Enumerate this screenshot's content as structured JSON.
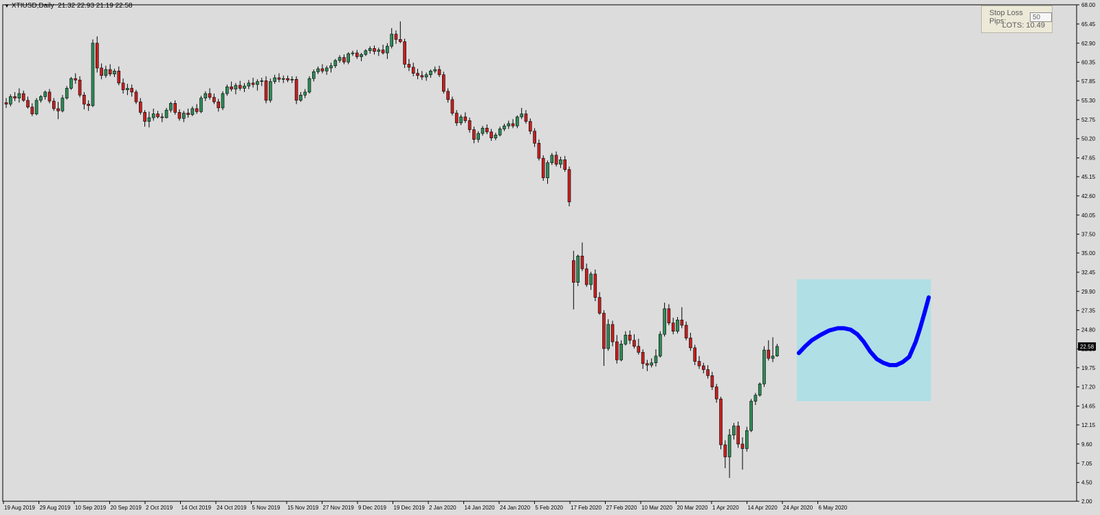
{
  "header": {
    "symbol": "XTIUSD,Daily",
    "ohlc": "21.32 22.93 21.19 22.58"
  },
  "stop_loss_panel": {
    "label": "Stop Loss Pips:",
    "value": "50",
    "lots_label": "LOTS:",
    "lots_value": "10.49"
  },
  "colors": {
    "background": "#dcdcdc",
    "bull": "#2e8b57",
    "bear": "#c62020",
    "wick": "#000000",
    "forecast_box": "#b0dfe6",
    "forecast_line": "#0000ff",
    "price_tag_bg": "#000000",
    "price_tag_fg": "#ffffff"
  },
  "chart_data": {
    "type": "candlestick",
    "title": "XTIUSD,Daily",
    "ylim": [
      2.0,
      68.0
    ],
    "y_ticks": [
      "68.00",
      "65.45",
      "62.90",
      "60.35",
      "57.85",
      "55.30",
      "52.75",
      "50.20",
      "47.65",
      "45.15",
      "42.60",
      "40.05",
      "37.50",
      "35.00",
      "32.45",
      "29.90",
      "27.35",
      "24.80",
      "22.25",
      "19.75",
      "17.20",
      "14.65",
      "12.15",
      "9.60",
      "7.05",
      "4.50",
      "2.00"
    ],
    "x_ticks": [
      "19 Aug 2019",
      "29 Aug 2019",
      "10 Sep 2019",
      "20 Sep 2019",
      "2 Oct 2019",
      "14 Oct 2019",
      "24 Oct 2019",
      "5 Nov 2019",
      "15 Nov 2019",
      "27 Nov 2019",
      "9 Dec 2019",
      "19 Dec 2019",
      "2 Jan 2020",
      "14 Jan 2020",
      "24 Jan 2020",
      "5 Feb 2020",
      "17 Feb 2020",
      "27 Feb 2020",
      "10 Mar 2020",
      "20 Mar 2020",
      "1 Apr 2020",
      "14 Apr 2020",
      "24 Apr 2020",
      "6 May 2020"
    ],
    "last_price": "22.58",
    "candles": [
      [
        55.0,
        55.6,
        54.3,
        54.8
      ],
      [
        54.8,
        56.1,
        54.5,
        55.8
      ],
      [
        55.8,
        56.4,
        55.2,
        55.6
      ],
      [
        55.6,
        56.9,
        55.0,
        56.2
      ],
      [
        56.2,
        56.6,
        55.1,
        55.3
      ],
      [
        55.3,
        55.8,
        54.2,
        54.4
      ],
      [
        54.4,
        54.9,
        53.2,
        53.5
      ],
      [
        53.5,
        55.6,
        53.3,
        55.3
      ],
      [
        55.3,
        56.0,
        55.0,
        55.8
      ],
      [
        55.8,
        56.6,
        55.4,
        56.4
      ],
      [
        56.4,
        56.8,
        54.9,
        55.2
      ],
      [
        55.2,
        55.6,
        53.9,
        54.2
      ],
      [
        54.2,
        55.1,
        52.8,
        53.9
      ],
      [
        53.9,
        56.0,
        53.7,
        55.6
      ],
      [
        55.6,
        57.2,
        55.4,
        56.9
      ],
      [
        56.9,
        58.4,
        56.7,
        58.2
      ],
      [
        58.2,
        58.9,
        57.5,
        58.0
      ],
      [
        58.0,
        58.5,
        55.7,
        56.0
      ],
      [
        56.0,
        56.4,
        54.1,
        54.8
      ],
      [
        54.8,
        55.3,
        53.9,
        54.6
      ],
      [
        54.6,
        63.4,
        54.4,
        62.9
      ],
      [
        62.9,
        63.8,
        59.0,
        59.6
      ],
      [
        59.6,
        60.2,
        58.1,
        58.6
      ],
      [
        58.6,
        59.9,
        58.3,
        59.4
      ],
      [
        59.4,
        60.1,
        58.5,
        58.8
      ],
      [
        58.8,
        59.5,
        58.4,
        59.2
      ],
      [
        59.2,
        59.8,
        57.3,
        57.6
      ],
      [
        57.6,
        58.2,
        56.2,
        56.7
      ],
      [
        56.7,
        57.5,
        56.0,
        56.9
      ],
      [
        56.9,
        57.4,
        55.8,
        56.4
      ],
      [
        56.4,
        56.7,
        54.8,
        55.1
      ],
      [
        55.1,
        55.6,
        53.4,
        53.7
      ],
      [
        53.7,
        54.0,
        51.8,
        52.5
      ],
      [
        52.5,
        53.8,
        51.7,
        53.0
      ],
      [
        53.0,
        54.2,
        52.6,
        53.5
      ],
      [
        53.5,
        53.9,
        52.9,
        53.1
      ],
      [
        53.1,
        53.6,
        52.4,
        53.0
      ],
      [
        53.0,
        54.3,
        52.9,
        54.0
      ],
      [
        54.0,
        55.1,
        53.7,
        54.9
      ],
      [
        54.9,
        55.3,
        53.4,
        53.7
      ],
      [
        53.7,
        54.1,
        52.6,
        52.9
      ],
      [
        52.9,
        53.9,
        52.4,
        53.6
      ],
      [
        53.6,
        54.2,
        53.0,
        53.4
      ],
      [
        53.4,
        54.5,
        53.2,
        54.2
      ],
      [
        54.2,
        54.8,
        53.5,
        53.8
      ],
      [
        53.8,
        55.9,
        53.6,
        55.6
      ],
      [
        55.6,
        56.5,
        55.2,
        56.2
      ],
      [
        56.2,
        56.9,
        55.4,
        55.7
      ],
      [
        55.7,
        56.2,
        54.8,
        55.1
      ],
      [
        55.1,
        55.5,
        53.8,
        54.3
      ],
      [
        54.3,
        56.5,
        54.0,
        56.2
      ],
      [
        56.2,
        57.4,
        55.9,
        57.1
      ],
      [
        57.1,
        57.8,
        56.5,
        56.8
      ],
      [
        56.8,
        57.6,
        56.1,
        57.3
      ],
      [
        57.3,
        57.9,
        56.6,
        56.9
      ],
      [
        56.9,
        57.6,
        56.4,
        57.2
      ],
      [
        57.2,
        58.0,
        56.8,
        57.6
      ],
      [
        57.6,
        58.3,
        57.0,
        57.4
      ],
      [
        57.4,
        58.1,
        56.6,
        57.8
      ],
      [
        57.8,
        58.3,
        57.2,
        57.9
      ],
      [
        57.9,
        58.5,
        54.9,
        55.3
      ],
      [
        55.3,
        58.2,
        55.0,
        57.8
      ],
      [
        57.8,
        58.7,
        57.5,
        58.3
      ],
      [
        58.3,
        58.9,
        57.7,
        58.1
      ],
      [
        58.1,
        58.6,
        57.6,
        58.2
      ],
      [
        58.2,
        58.6,
        57.7,
        58.0
      ],
      [
        58.0,
        58.5,
        57.6,
        58.1
      ],
      [
        58.1,
        58.5,
        54.8,
        55.3
      ],
      [
        55.3,
        56.4,
        55.1,
        56.0
      ],
      [
        56.0,
        56.8,
        55.6,
        56.4
      ],
      [
        56.4,
        58.5,
        56.2,
        58.2
      ],
      [
        58.2,
        59.4,
        57.8,
        59.1
      ],
      [
        59.1,
        59.8,
        58.8,
        59.5
      ],
      [
        59.5,
        60.1,
        58.9,
        59.2
      ],
      [
        59.2,
        59.9,
        58.7,
        59.6
      ],
      [
        59.6,
        60.3,
        59.0,
        59.9
      ],
      [
        59.9,
        60.8,
        59.6,
        60.6
      ],
      [
        60.6,
        61.3,
        60.3,
        61.0
      ],
      [
        61.0,
        61.4,
        60.1,
        60.4
      ],
      [
        60.4,
        61.7,
        60.1,
        61.5
      ],
      [
        61.5,
        61.9,
        61.2,
        61.6
      ],
      [
        61.6,
        62.0,
        60.8,
        61.1
      ],
      [
        61.1,
        61.6,
        60.5,
        61.4
      ],
      [
        61.4,
        62.1,
        61.2,
        61.9
      ],
      [
        61.9,
        62.5,
        61.5,
        62.2
      ],
      [
        62.2,
        62.6,
        61.4,
        61.8
      ],
      [
        61.8,
        62.3,
        61.2,
        62.0
      ],
      [
        62.0,
        62.7,
        61.4,
        61.6
      ],
      [
        61.6,
        62.9,
        60.8,
        62.5
      ],
      [
        62.5,
        64.9,
        62.2,
        64.1
      ],
      [
        64.1,
        64.6,
        62.8,
        63.4
      ],
      [
        63.4,
        65.8,
        62.9,
        63.1
      ],
      [
        63.1,
        63.5,
        59.6,
        60.1
      ],
      [
        60.1,
        60.8,
        59.2,
        59.7
      ],
      [
        59.7,
        60.3,
        58.5,
        58.9
      ],
      [
        58.9,
        59.5,
        58.1,
        58.6
      ],
      [
        58.6,
        59.2,
        58.0,
        58.4
      ],
      [
        58.4,
        59.0,
        57.9,
        58.7
      ],
      [
        58.7,
        59.4,
        58.3,
        59.2
      ],
      [
        59.2,
        59.8,
        58.9,
        59.4
      ],
      [
        59.4,
        59.9,
        58.4,
        58.7
      ],
      [
        58.7,
        59.1,
        56.2,
        56.5
      ],
      [
        56.5,
        56.9,
        55.0,
        55.4
      ],
      [
        55.4,
        55.8,
        53.3,
        53.6
      ],
      [
        53.6,
        54.0,
        51.9,
        52.3
      ],
      [
        52.3,
        53.4,
        52.0,
        53.1
      ],
      [
        53.1,
        53.7,
        52.3,
        52.6
      ],
      [
        52.6,
        53.0,
        51.0,
        51.4
      ],
      [
        51.4,
        51.8,
        49.6,
        50.1
      ],
      [
        50.1,
        51.2,
        49.7,
        50.9
      ],
      [
        50.9,
        51.9,
        50.6,
        51.6
      ],
      [
        51.6,
        52.1,
        50.8,
        51.1
      ],
      [
        51.1,
        51.5,
        49.9,
        50.3
      ],
      [
        50.3,
        51.0,
        50.0,
        50.7
      ],
      [
        50.7,
        51.8,
        50.5,
        51.5
      ],
      [
        51.5,
        52.2,
        51.2,
        51.9
      ],
      [
        51.9,
        52.6,
        51.5,
        52.2
      ],
      [
        52.2,
        52.8,
        51.6,
        51.9
      ],
      [
        51.9,
        53.3,
        51.6,
        53.1
      ],
      [
        53.1,
        54.3,
        52.8,
        53.5
      ],
      [
        53.5,
        54.0,
        52.2,
        52.5
      ],
      [
        52.5,
        52.9,
        50.8,
        51.2
      ],
      [
        51.2,
        51.6,
        49.1,
        49.6
      ],
      [
        49.6,
        50.1,
        47.3,
        47.6
      ],
      [
        47.6,
        48.0,
        44.6,
        45.0
      ],
      [
        45.0,
        47.3,
        44.2,
        47.0
      ],
      [
        47.0,
        48.3,
        46.7,
        48.0
      ],
      [
        48.0,
        48.5,
        46.5,
        46.8
      ],
      [
        46.8,
        47.8,
        46.3,
        47.4
      ],
      [
        47.4,
        47.9,
        45.8,
        46.1
      ],
      [
        46.1,
        46.5,
        41.2,
        41.8
      ],
      [
        34.0,
        35.3,
        27.5,
        31.1
      ],
      [
        31.1,
        34.8,
        30.6,
        34.6
      ],
      [
        34.6,
        36.4,
        32.6,
        32.9
      ],
      [
        32.9,
        33.6,
        30.5,
        30.8
      ],
      [
        30.8,
        32.5,
        30.1,
        32.2
      ],
      [
        32.2,
        32.8,
        28.6,
        29.1
      ],
      [
        29.1,
        29.8,
        26.8,
        27.0
      ],
      [
        27.0,
        27.4,
        20.0,
        22.3
      ],
      [
        22.3,
        26.2,
        22.0,
        25.5
      ],
      [
        25.5,
        26.0,
        22.6,
        23.2
      ],
      [
        23.2,
        24.1,
        20.3,
        20.8
      ],
      [
        20.8,
        23.4,
        20.6,
        22.9
      ],
      [
        22.9,
        24.6,
        22.7,
        24.1
      ],
      [
        24.1,
        24.7,
        22.9,
        23.4
      ],
      [
        23.4,
        24.2,
        22.3,
        22.6
      ],
      [
        22.6,
        23.6,
        21.5,
        21.8
      ],
      [
        21.8,
        22.2,
        19.6,
        20.3
      ],
      [
        20.3,
        20.8,
        19.3,
        20.1
      ],
      [
        20.1,
        21.0,
        19.8,
        20.4
      ],
      [
        20.4,
        22.2,
        19.9,
        21.3
      ],
      [
        21.3,
        24.6,
        21.1,
        24.2
      ],
      [
        24.2,
        28.4,
        23.9,
        27.6
      ],
      [
        27.6,
        28.2,
        25.4,
        25.7
      ],
      [
        25.7,
        26.4,
        24.2,
        24.6
      ],
      [
        24.6,
        26.5,
        24.3,
        26.1
      ],
      [
        26.1,
        27.8,
        25.0,
        25.4
      ],
      [
        25.4,
        25.9,
        23.4,
        23.7
      ],
      [
        23.7,
        24.4,
        22.0,
        22.4
      ],
      [
        22.4,
        22.8,
        20.1,
        20.6
      ],
      [
        20.6,
        21.3,
        19.6,
        20.0
      ],
      [
        20.0,
        20.4,
        19.0,
        19.5
      ],
      [
        19.5,
        20.1,
        18.3,
        18.7
      ],
      [
        18.7,
        19.2,
        16.8,
        17.2
      ],
      [
        17.2,
        17.6,
        15.1,
        15.6
      ],
      [
        15.6,
        15.9,
        8.9,
        9.5
      ],
      [
        9.5,
        10.1,
        6.4,
        7.9
      ],
      [
        7.9,
        11.6,
        5.1,
        10.8
      ],
      [
        10.8,
        12.4,
        10.2,
        12.0
      ],
      [
        12.0,
        12.6,
        9.1,
        9.6
      ],
      [
        9.6,
        10.5,
        6.2,
        9.0
      ],
      [
        9.0,
        11.9,
        8.6,
        11.4
      ],
      [
        11.4,
        15.6,
        11.2,
        15.3
      ],
      [
        15.3,
        16.4,
        14.8,
        16.1
      ],
      [
        16.1,
        17.8,
        15.9,
        17.6
      ],
      [
        17.6,
        22.6,
        17.2,
        22.1
      ],
      [
        22.1,
        23.4,
        20.7,
        21.0
      ],
      [
        21.0,
        23.8,
        20.5,
        21.3
      ],
      [
        21.32,
        22.93,
        21.19,
        22.58
      ]
    ],
    "forecast": {
      "box": {
        "x_start_index": 183,
        "x_end_index": 213,
        "y_low": 15.3,
        "y_high": 31.5
      },
      "path": [
        [
          183.0,
          21.7
        ],
        [
          184.5,
          22.6
        ],
        [
          186.0,
          23.4
        ],
        [
          188.0,
          24.1
        ],
        [
          190.0,
          24.7
        ],
        [
          192.0,
          25.0
        ],
        [
          193.5,
          25.0
        ],
        [
          195.0,
          24.8
        ],
        [
          196.5,
          24.2
        ],
        [
          198.0,
          23.2
        ],
        [
          199.5,
          21.9
        ],
        [
          201.0,
          20.9
        ],
        [
          202.5,
          20.4
        ],
        [
          204.0,
          20.1
        ],
        [
          205.5,
          20.1
        ],
        [
          207.0,
          20.5
        ],
        [
          208.5,
          21.2
        ],
        [
          210.0,
          23.2
        ],
        [
          211.0,
          25.0
        ],
        [
          212.0,
          27.0
        ],
        [
          213.0,
          29.1
        ]
      ]
    }
  }
}
